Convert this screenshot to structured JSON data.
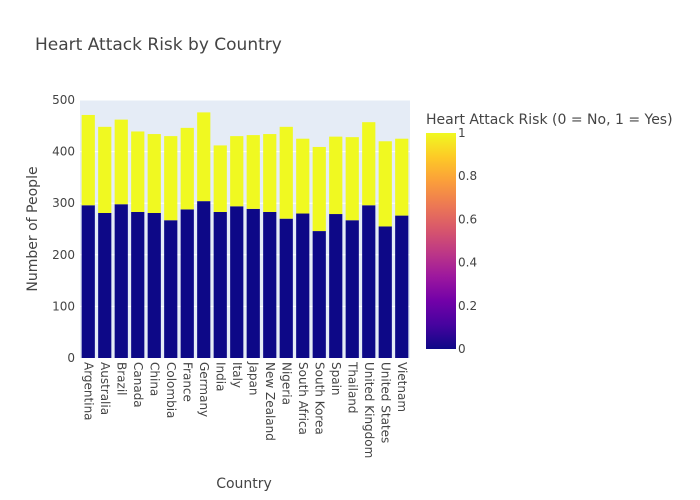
{
  "chart_data": {
    "type": "bar",
    "stacked": true,
    "title": "Heart Attack Risk by Country",
    "xlabel": "Country",
    "ylabel": "Number of People",
    "ylim": [
      0,
      500
    ],
    "yticks": [
      0,
      100,
      200,
      300,
      400,
      500
    ],
    "grid": true,
    "categories": [
      "Argentina",
      "Australia",
      "Brazil",
      "Canada",
      "China",
      "Colombia",
      "France",
      "Germany",
      "India",
      "Italy",
      "Japan",
      "New Zealand",
      "Nigeria",
      "South Africa",
      "South Korea",
      "Spain",
      "Thailand",
      "United Kingdom",
      "United States",
      "Vietnam"
    ],
    "series": [
      {
        "risk": 0,
        "color": "#0d0887",
        "values": [
          296,
          281,
          298,
          283,
          281,
          267,
          288,
          304,
          283,
          294,
          289,
          283,
          270,
          280,
          246,
          279,
          267,
          296,
          255,
          276
        ]
      },
      {
        "risk": 1,
        "color": "#f0f921",
        "values": [
          175,
          167,
          164,
          156,
          153,
          163,
          158,
          172,
          129,
          136,
          143,
          151,
          178,
          145,
          163,
          150,
          161,
          161,
          165,
          149
        ]
      }
    ],
    "colorbar": {
      "title": "Heart Attack Risk (0 = No, 1 = Yes)",
      "range": [
        0,
        1
      ],
      "ticks": [
        "0",
        "0.2",
        "0.4",
        "0.6",
        "0.8",
        "1"
      ],
      "colorscale": [
        "#0d0887",
        "#46039f",
        "#7201a8",
        "#9c179e",
        "#bd3786",
        "#d8576b",
        "#ed7953",
        "#fb9f3a",
        "#fdca26",
        "#f0f921"
      ]
    }
  }
}
